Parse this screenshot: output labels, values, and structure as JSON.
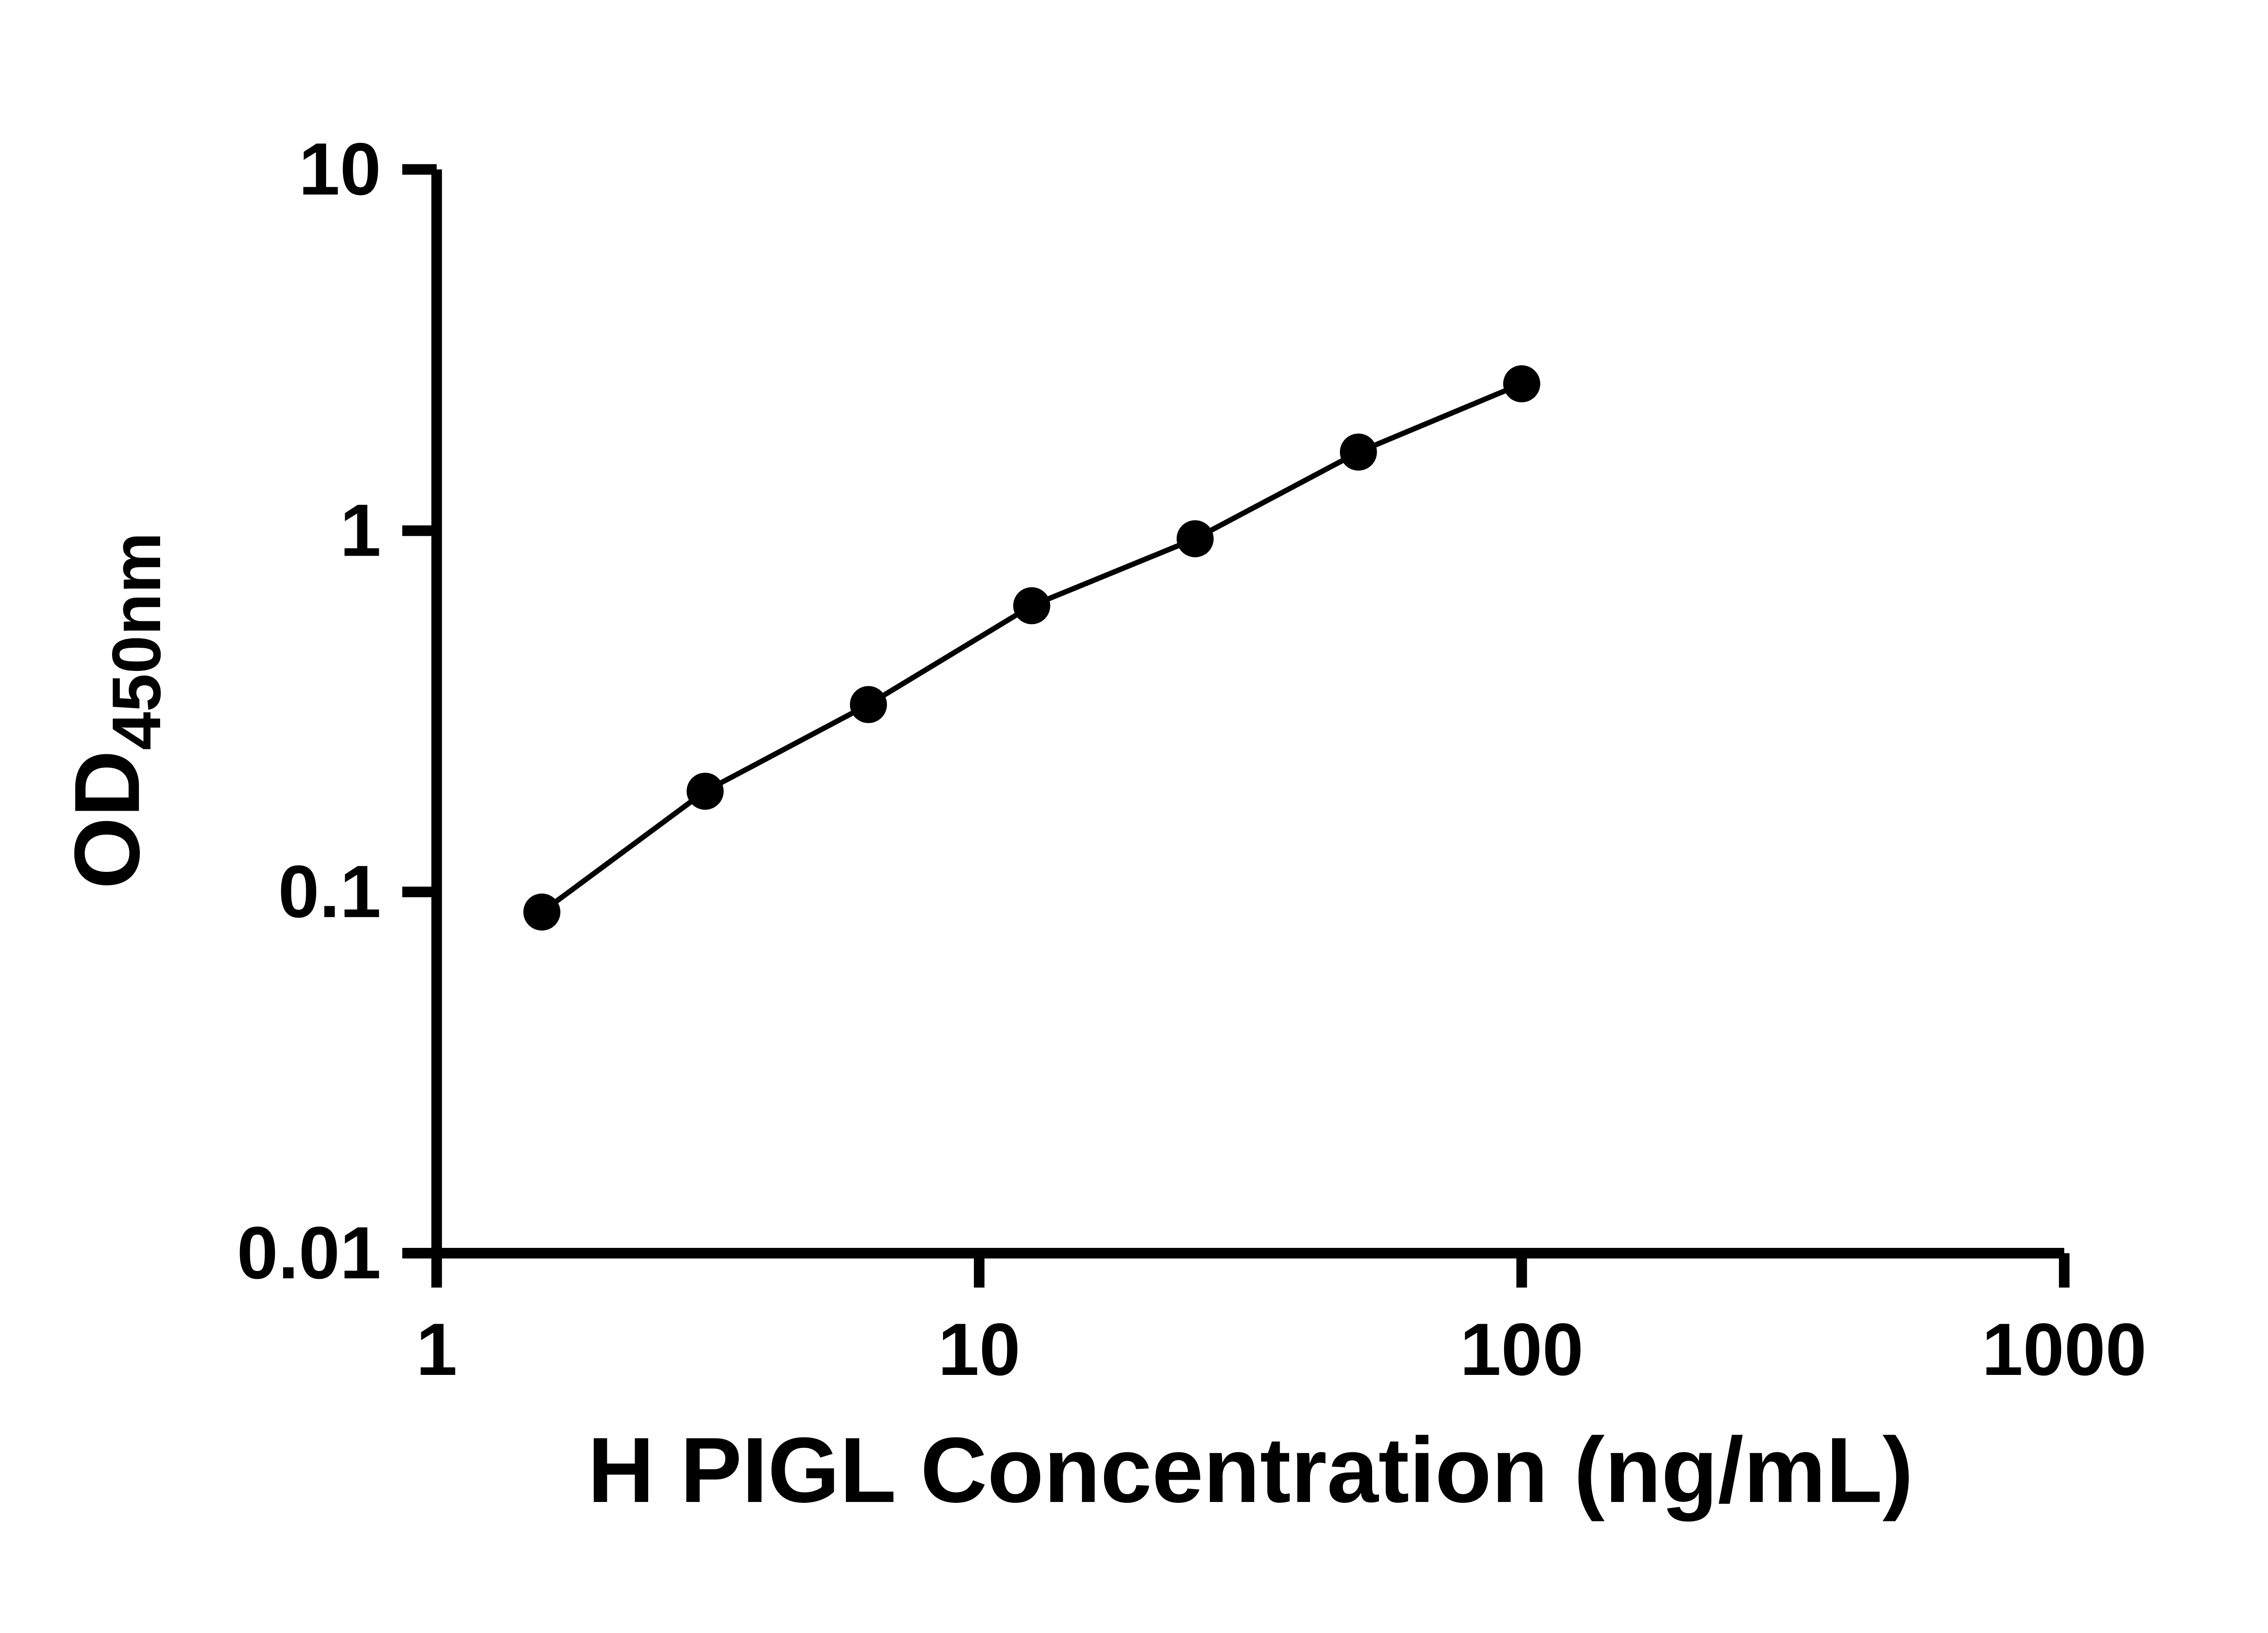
{
  "page": {
    "background_color": "#ffffff"
  },
  "chart_data": {
    "type": "scatter",
    "title": "",
    "xlabel": "H PIGL Concentration (ng/mL)",
    "ylabel": "OD450nm",
    "ylabel_main": "OD",
    "ylabel_sub": "450nm",
    "x_scale": "log",
    "y_scale": "log",
    "xlim": [
      1,
      1000
    ],
    "ylim": [
      0.01,
      10
    ],
    "x_tick_values": [
      1,
      10,
      100,
      1000
    ],
    "x_tick_labels": [
      "1",
      "10",
      "100",
      "1000"
    ],
    "y_tick_values": [
      0.01,
      0.1,
      1,
      10
    ],
    "y_tick_labels": [
      "0.01",
      "0.1",
      "1",
      "10"
    ],
    "x": [
      1.5625,
      3.125,
      6.25,
      12.5,
      25,
      50,
      100
    ],
    "y": [
      0.088,
      0.19,
      0.33,
      0.62,
      0.95,
      1.65,
      2.55
    ],
    "marker": "circle",
    "marker_color": "#000000",
    "line_color": "#000000",
    "axis_color": "#000000",
    "grid": false,
    "legend": false
  }
}
